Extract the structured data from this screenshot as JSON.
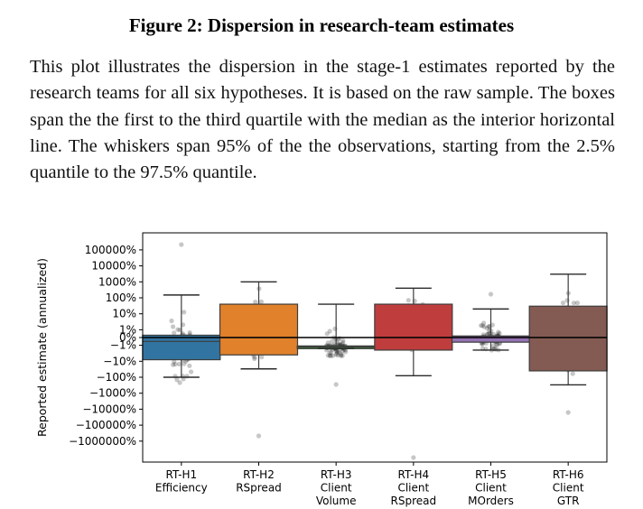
{
  "figure": {
    "title": "Figure 2: Dispersion in research-team estimates",
    "caption": "This plot illustrates the dispersion in the stage-1 estimates reported by the research teams for all six hypotheses. It is based on the raw sample. The boxes span the the first to the third quartile with the median as the interior horizontal line. The whiskers span 95% of the the observations, starting from the 2.5% quantile to the 97.5% quantile."
  },
  "chart_data": {
    "type": "box",
    "ylabel": "Reported estimate (annualized)",
    "yscale": "symlog",
    "reference_line_y": 0,
    "ytick_labels": [
      "100000%",
      "10000%",
      "1000%",
      "100%",
      "10%",
      "1%",
      "0%",
      "−1%",
      "−10%",
      "−100%",
      "−1000%",
      "−10000%",
      "−100000%",
      "−1000000%"
    ],
    "ytick_values": [
      1000,
      100,
      10,
      1,
      0.1,
      0.01,
      0,
      -0.01,
      -0.1,
      -1,
      -10,
      -100,
      -1000,
      -10000
    ],
    "categories": [
      {
        "label": [
          "RT-H1",
          "Efficiency"
        ],
        "color": "#3274a1",
        "q1": -0.08,
        "median": -0.005,
        "q3": 0.003,
        "whisker_low": -1.0,
        "whisker_high": 1.5
      },
      {
        "label": [
          "RT-H2",
          "RSpread"
        ],
        "color": "#e1812c",
        "q1": -0.04,
        "median": 0.0,
        "q3": 0.4,
        "whisker_low": -0.3,
        "whisker_high": 10
      },
      {
        "label": [
          "RT-H3",
          "Client",
          "Volume"
        ],
        "color": "#3a923a",
        "q1": -0.016,
        "median": -0.013,
        "q3": -0.011,
        "whisker_low": -0.016,
        "whisker_high": 0.4
      },
      {
        "label": [
          "RT-H4",
          "Client",
          "RSpread"
        ],
        "color": "#c03d3e",
        "q1": -0.02,
        "median": 0.0,
        "q3": 0.4,
        "whisker_low": -0.8,
        "whisker_high": 4
      },
      {
        "label": [
          "RT-H5",
          "Client",
          "MOrders"
        ],
        "color": "#9372b2",
        "q1": -0.006,
        "median": 0.0,
        "q3": 0.002,
        "whisker_low": -0.02,
        "whisker_high": 0.2
      },
      {
        "label": [
          "RT-H6",
          "Client",
          "GTR"
        ],
        "color": "#845b53",
        "q1": -0.4,
        "median": 0.0,
        "q3": 0.3,
        "whisker_low": -3,
        "whisker_high": 30
      }
    ]
  }
}
